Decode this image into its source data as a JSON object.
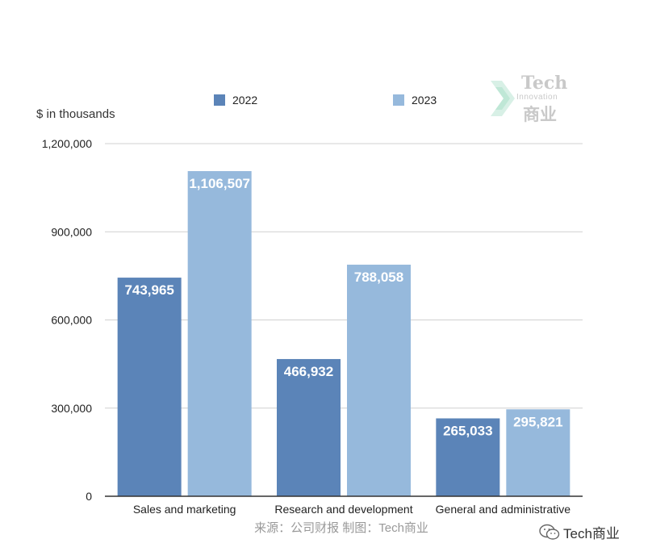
{
  "unit_label": "$ in thousands",
  "source": "来源：公司财报 制图：Tech商业",
  "logo": {
    "line1": "Tech",
    "line2": "Innovation",
    "line3": "商业"
  },
  "watermark": "Tech商业",
  "colors": {
    "series_2022": "#5b84b8",
    "series_2023": "#96b9dc",
    "grid": "#d0d0d0",
    "axis": "#333333"
  },
  "chart_data": {
    "type": "bar",
    "categories": [
      "Sales and marketing",
      "Research and development",
      "General and administrative"
    ],
    "series": [
      {
        "name": "2022",
        "values": [
          743965,
          466932,
          265033
        ],
        "labels": [
          "743,965",
          "466,932",
          "265,033"
        ]
      },
      {
        "name": "2023",
        "values": [
          1106507,
          788058,
          295821
        ],
        "labels": [
          "1,106,507",
          "788,058",
          "295,821"
        ]
      }
    ],
    "ylabel": "$ in thousands",
    "ylim": [
      0,
      1200000
    ],
    "yticks": [
      0,
      300000,
      600000,
      900000,
      1200000
    ],
    "ytick_labels": [
      "0",
      "300,000",
      "600,000",
      "900,000",
      "1,200,000"
    ],
    "grid": true,
    "legend": "top"
  }
}
